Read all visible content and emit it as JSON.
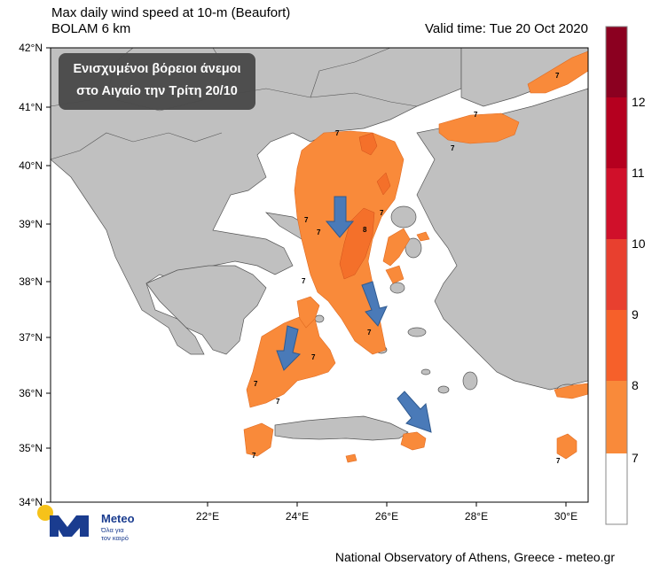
{
  "header": {
    "title": "Max daily wind speed at 10-m (Beaufort)",
    "model": "BOLAM 6 km",
    "valid_time": "Valid time: Tue 20 Oct 2020"
  },
  "annotation": {
    "line1": "Ενισχυμένοι βόρειοι άνεμοι",
    "line2": "στο Αιγαίο την Τρίτη 20/10"
  },
  "axes": {
    "lat_labels": [
      "42°N",
      "41°N",
      "40°N",
      "39°N",
      "38°N",
      "37°N",
      "36°N",
      "35°N",
      "34°N"
    ],
    "lon_labels": [
      "22°E",
      "24°E",
      "26°E",
      "28°E",
      "30°E"
    ]
  },
  "colorbar": {
    "labels": [
      "12",
      "11",
      "10",
      "9",
      "8",
      "7"
    ],
    "colors": [
      "#8b0020",
      "#b5001f",
      "#d0102a",
      "#e8402f",
      "#f6602a",
      "#f98a3a",
      "#ffffff"
    ]
  },
  "contour_labels": [
    "7",
    "7",
    "7",
    "7",
    "7",
    "8",
    "7",
    "7",
    "7",
    "7",
    "7",
    "7",
    "7",
    "7",
    "7"
  ],
  "footer": "National Observatory of Athens, Greece - meteo.gr",
  "logo": {
    "name": "Meteo",
    "tagline1": "Όλα για",
    "tagline2": "τον καιρό"
  },
  "colors": {
    "land": "#c0c0c0",
    "sea": "#ffffff",
    "wind7": "#f98a3a",
    "wind8": "#f4702a",
    "arrow": "#4a7ab8",
    "logo_blue": "#1a3c8f",
    "logo_yellow": "#f6c21a"
  }
}
